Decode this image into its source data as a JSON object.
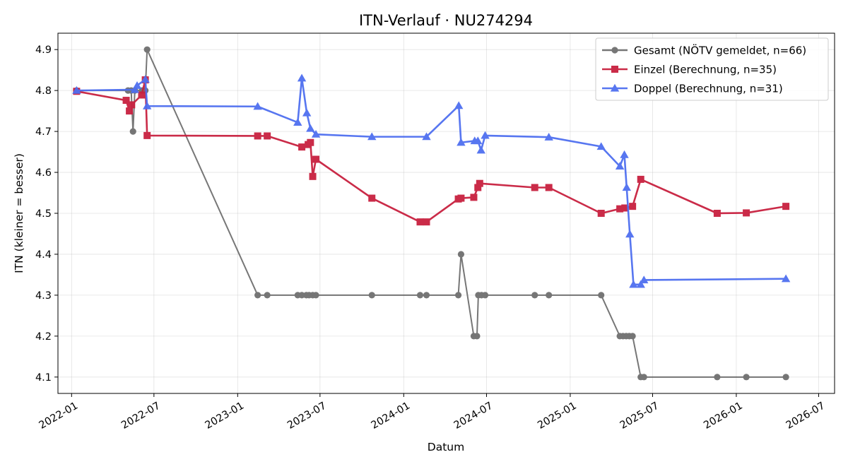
{
  "chart_data": {
    "type": "line",
    "title": "ITN-Verlauf · NU274294",
    "xlabel": "Datum",
    "ylabel": "ITN  (kleiner = besser)",
    "xlim": [
      "2021-12-02",
      "2026-08-05"
    ],
    "ylim": [
      4.06,
      4.94
    ],
    "x_ticks": [
      "2022-01",
      "2022-07",
      "2023-01",
      "2023-07",
      "2024-01",
      "2024-07",
      "2025-01",
      "2025-07",
      "2026-01",
      "2026-07"
    ],
    "y_ticks": [
      4.1,
      4.2,
      4.3,
      4.4,
      4.5,
      4.6,
      4.7,
      4.8,
      4.9
    ],
    "grid": true,
    "legend_position": "top-right",
    "series": [
      {
        "name": "Gesamt (NÖTV gemeldet, n=66)",
        "color": "#555555",
        "marker": "circle",
        "points": [
          [
            "2022-01-12",
            4.8
          ],
          [
            "2022-05-05",
            4.8
          ],
          [
            "2022-05-12",
            4.8
          ],
          [
            "2022-05-16",
            4.7
          ],
          [
            "2022-05-20",
            4.8
          ],
          [
            "2022-06-05",
            4.8
          ],
          [
            "2022-06-12",
            4.8
          ],
          [
            "2022-06-16",
            4.9
          ],
          [
            "2023-02-14",
            4.3
          ],
          [
            "2023-03-07",
            4.3
          ],
          [
            "2023-05-13",
            4.3
          ],
          [
            "2023-05-22",
            4.3
          ],
          [
            "2023-06-01",
            4.3
          ],
          [
            "2023-06-07",
            4.3
          ],
          [
            "2023-06-15",
            4.3
          ],
          [
            "2023-06-22",
            4.3
          ],
          [
            "2023-10-23",
            4.3
          ],
          [
            "2024-02-06",
            4.3
          ],
          [
            "2024-02-20",
            4.3
          ],
          [
            "2024-04-30",
            4.3
          ],
          [
            "2024-05-06",
            4.4
          ],
          [
            "2024-06-03",
            4.2
          ],
          [
            "2024-06-10",
            4.2
          ],
          [
            "2024-06-13",
            4.3
          ],
          [
            "2024-06-20",
            4.3
          ],
          [
            "2024-06-28",
            4.3
          ],
          [
            "2024-10-15",
            4.3
          ],
          [
            "2024-11-15",
            4.3
          ],
          [
            "2025-03-10",
            4.3
          ],
          [
            "2025-04-20",
            4.2
          ],
          [
            "2025-04-27",
            4.2
          ],
          [
            "2025-05-04",
            4.2
          ],
          [
            "2025-05-11",
            4.2
          ],
          [
            "2025-05-18",
            4.2
          ],
          [
            "2025-06-05",
            4.1
          ],
          [
            "2025-06-12",
            4.1
          ],
          [
            "2025-11-20",
            4.1
          ],
          [
            "2026-01-23",
            4.1
          ],
          [
            "2026-04-20",
            4.1
          ]
        ]
      },
      {
        "name": "Einzel (Berechnung, n=35)",
        "color": "#c8203f",
        "marker": "square",
        "points": [
          [
            "2022-01-12",
            4.798
          ],
          [
            "2022-05-01",
            4.776
          ],
          [
            "2022-05-08",
            4.75
          ],
          [
            "2022-05-13",
            4.765
          ],
          [
            "2022-06-04",
            4.789
          ],
          [
            "2022-06-12",
            4.826
          ],
          [
            "2022-06-16",
            4.69
          ],
          [
            "2023-02-14",
            4.689
          ],
          [
            "2023-03-07",
            4.689
          ],
          [
            "2023-05-22",
            4.662
          ],
          [
            "2023-06-05",
            4.668
          ],
          [
            "2023-06-10",
            4.673
          ],
          [
            "2023-06-15",
            4.59
          ],
          [
            "2023-06-22",
            4.632
          ],
          [
            "2023-10-23",
            4.537
          ],
          [
            "2024-02-06",
            4.479
          ],
          [
            "2024-02-20",
            4.479
          ],
          [
            "2024-04-30",
            4.535
          ],
          [
            "2024-05-06",
            4.537
          ],
          [
            "2024-06-03",
            4.539
          ],
          [
            "2024-06-12",
            4.563
          ],
          [
            "2024-06-16",
            4.573
          ],
          [
            "2024-10-15",
            4.563
          ],
          [
            "2024-11-15",
            4.563
          ],
          [
            "2025-03-10",
            4.5
          ],
          [
            "2025-04-20",
            4.511
          ],
          [
            "2025-05-01",
            4.513
          ],
          [
            "2025-05-18",
            4.517
          ],
          [
            "2025-06-05",
            4.583
          ],
          [
            "2025-11-20",
            4.5
          ],
          [
            "2026-01-23",
            4.501
          ],
          [
            "2026-04-20",
            4.517
          ]
        ]
      },
      {
        "name": "Doppel (Berechnung, n=31)",
        "color": "#4f6ff0",
        "marker": "triangle",
        "points": [
          [
            "2022-01-12",
            4.8
          ],
          [
            "2022-05-20",
            4.802
          ],
          [
            "2022-05-25",
            4.812
          ],
          [
            "2022-06-12",
            4.827
          ],
          [
            "2022-06-16",
            4.762
          ],
          [
            "2023-02-14",
            4.761
          ],
          [
            "2023-05-13",
            4.722
          ],
          [
            "2023-05-22",
            4.83
          ],
          [
            "2023-06-02",
            4.745
          ],
          [
            "2023-06-10",
            4.707
          ],
          [
            "2023-06-22",
            4.693
          ],
          [
            "2023-10-23",
            4.687
          ],
          [
            "2024-02-20",
            4.687
          ],
          [
            "2024-05-01",
            4.763
          ],
          [
            "2024-05-06",
            4.673
          ],
          [
            "2024-06-05",
            4.677
          ],
          [
            "2024-06-12",
            4.677
          ],
          [
            "2024-06-19",
            4.654
          ],
          [
            "2024-06-28",
            4.69
          ],
          [
            "2024-11-15",
            4.686
          ],
          [
            "2025-03-10",
            4.663
          ],
          [
            "2025-04-20",
            4.615
          ],
          [
            "2025-04-30",
            4.643
          ],
          [
            "2025-05-05",
            4.563
          ],
          [
            "2025-05-12",
            4.449
          ],
          [
            "2025-05-20",
            4.326
          ],
          [
            "2025-06-05",
            4.326
          ],
          [
            "2025-06-12",
            4.337
          ],
          [
            "2026-04-20",
            4.34
          ]
        ]
      }
    ]
  }
}
